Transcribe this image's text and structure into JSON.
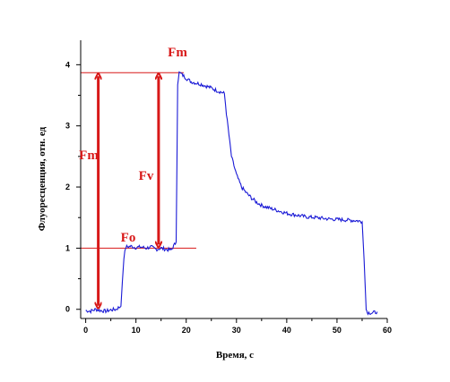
{
  "chart_data": {
    "type": "line",
    "xlabel": "Время, с",
    "ylabel": "Флуоресценция, отн. ед",
    "xlim": [
      -1,
      60
    ],
    "ylim": [
      -0.15,
      4.4
    ],
    "xticks": [
      0,
      10,
      20,
      30,
      40,
      50,
      60
    ],
    "yticks": [
      0,
      1,
      2,
      3,
      4
    ],
    "colors": {
      "line": "#1a1ad6",
      "annotation": "#d81818",
      "axis": "#000000"
    },
    "series": [
      {
        "x": [
          0,
          1,
          2,
          3,
          4,
          5,
          6,
          7,
          7.6,
          8,
          9,
          10,
          11,
          12,
          13,
          14,
          15,
          16,
          17,
          18,
          18.3,
          18.6,
          19,
          20,
          21,
          22,
          23,
          24,
          25,
          26,
          27,
          27.6,
          28,
          28.5,
          29,
          30,
          31,
          32,
          33,
          34,
          35,
          36,
          38,
          40,
          42,
          44,
          46,
          48,
          50,
          52,
          54,
          55,
          55.4,
          55.8,
          56,
          57,
          58
        ],
        "y": [
          -0.02,
          -0.03,
          0.0,
          -0.02,
          -0.03,
          -0.01,
          0.0,
          0.05,
          0.85,
          1.02,
          1.03,
          1.01,
          1.02,
          1.0,
          1.02,
          0.98,
          1.0,
          0.98,
          0.97,
          1.1,
          3.7,
          3.87,
          3.85,
          3.78,
          3.72,
          3.7,
          3.68,
          3.65,
          3.62,
          3.58,
          3.55,
          3.53,
          3.2,
          2.85,
          2.5,
          2.2,
          2.0,
          1.9,
          1.82,
          1.75,
          1.7,
          1.67,
          1.62,
          1.57,
          1.54,
          1.51,
          1.5,
          1.48,
          1.47,
          1.46,
          1.45,
          1.43,
          0.8,
          0.02,
          -0.05,
          -0.06,
          -0.04
        ]
      }
    ],
    "reference_lines": [
      3.87,
      1.0
    ],
    "annotations": {
      "fm_top": "Fm",
      "fm_left": "Fm",
      "fv": "Fv",
      "fo": "Fo"
    },
    "arrows": [
      {
        "x": 2.5,
        "from": 3.87,
        "to": 0.0
      },
      {
        "x": 14.5,
        "from": 3.87,
        "to": 1.0
      }
    ]
  }
}
